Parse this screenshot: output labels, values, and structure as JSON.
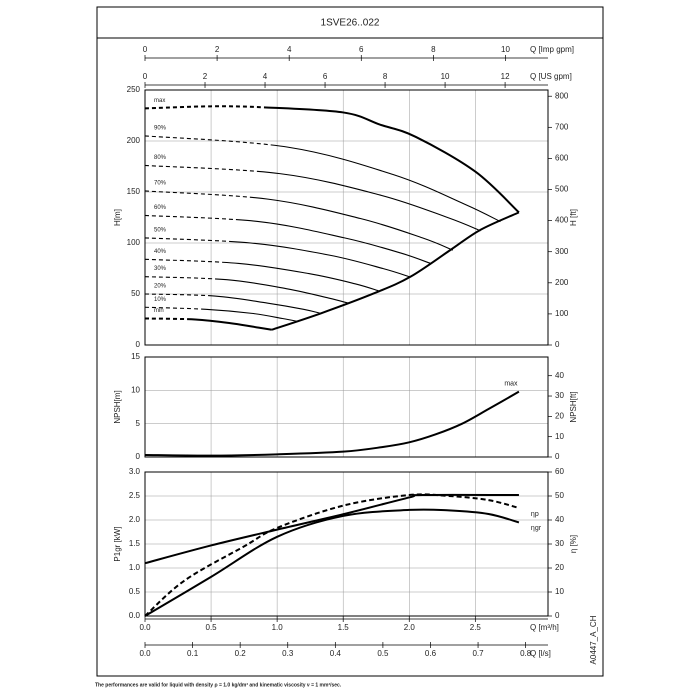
{
  "title": "1SVE26..022",
  "note": "The performances are valid for liquid with density ρ = 1.0 kg/dm³ and kinematic viscosity ν = 1 mm²/sec.",
  "code": "A0447_A_CH",
  "x_axes": [
    {
      "label": "Q [Imp gpm]",
      "position": "top",
      "xlim": [
        0,
        11.18
      ],
      "xticks": [
        0,
        2,
        4,
        6,
        8,
        10
      ]
    },
    {
      "label": "Q [US gpm]",
      "position": "top",
      "xlim": [
        0,
        13.43
      ],
      "xticks": [
        0,
        2,
        4,
        6,
        8,
        10,
        12
      ]
    },
    {
      "label": "Q [m³/h]",
      "position": "bottom",
      "xlim": [
        0,
        3.05
      ],
      "xticks": [
        {
          "value": 0,
          "label": "0.0"
        },
        {
          "value": 0.5,
          "label": "0.5"
        },
        {
          "value": 1,
          "label": "1.0"
        },
        {
          "value": 1.5,
          "label": "1.5"
        },
        {
          "value": 2,
          "label": "2.0"
        },
        {
          "value": 2.5,
          "label": "2.5"
        }
      ]
    },
    {
      "label": "Q [l/s]",
      "position": "bottom",
      "xlim": [
        0,
        0.847
      ],
      "xticks": [
        {
          "value": 0,
          "label": "0.0"
        },
        0.1,
        0.2,
        0.3,
        0.4,
        0.5,
        0.6,
        0.7,
        0.8
      ]
    }
  ],
  "chart_data": [
    {
      "type": "line",
      "ylabel": "H[m]",
      "y2label": "H [ft]",
      "xlim": [
        0,
        3.05
      ],
      "grid": true,
      "ylim": [
        0,
        250
      ],
      "yticks": [
        0,
        50,
        100,
        150,
        200,
        250
      ],
      "y2lim": [
        0,
        820
      ],
      "y2ticks": [
        0,
        100,
        200,
        300,
        400,
        500,
        600,
        700,
        800
      ],
      "series": [
        {
          "name": "max",
          "width": 2,
          "dash_end": 0.9,
          "x": [
            0,
            0.5,
            0.9,
            1.5,
            1.78,
            2.05,
            2.5,
            2.83
          ],
          "values": [
            232,
            234,
            233,
            228,
            216,
            204,
            170,
            130
          ]
        },
        {
          "name": "90%",
          "dash_end": 0.9,
          "x": [
            0,
            1.08,
            1.88,
            2.42,
            2.69
          ],
          "values": [
            205,
            194,
            167,
            138,
            121
          ]
        },
        {
          "name": "80%",
          "dash_end": 0.8,
          "x": [
            0,
            1.02,
            1.78,
            2.29,
            2.54
          ],
          "values": [
            176,
            168,
            147,
            125,
            112
          ]
        },
        {
          "name": "70%",
          "dash_end": 0.75,
          "x": [
            0,
            0.93,
            1.63,
            2.1,
            2.33
          ],
          "values": [
            151,
            143,
            124,
            105,
            93
          ]
        },
        {
          "name": "60%",
          "dash_end": 0.65,
          "x": [
            0,
            0.86,
            1.51,
            1.94,
            2.16
          ],
          "values": [
            127,
            121,
            105,
            90,
            80
          ]
        },
        {
          "name": "50%",
          "dash_end": 0.6,
          "x": [
            0,
            0.8,
            1.4,
            1.8,
            2.0
          ],
          "values": [
            105,
            100,
            88,
            75,
            67
          ]
        },
        {
          "name": "40%",
          "dash_end": 0.55,
          "x": [
            0,
            0.71,
            1.24,
            1.59,
            1.77
          ],
          "values": [
            84,
            80,
            70,
            60,
            53
          ]
        },
        {
          "name": "30%",
          "dash_end": 0.5,
          "x": [
            0,
            0.62,
            1.08,
            1.39,
            1.54
          ],
          "values": [
            67,
            64,
            55,
            46,
            41
          ]
        },
        {
          "name": "20%",
          "dash_end": 0.45,
          "x": [
            0,
            0.53,
            0.93,
            1.2,
            1.33
          ],
          "values": [
            50,
            48,
            41,
            35,
            31
          ]
        },
        {
          "name": "10%",
          "dash_end": 0.4,
          "x": [
            0,
            0.46,
            0.81,
            1.04,
            1.16
          ],
          "values": [
            37,
            35,
            31,
            26,
            23
          ]
        },
        {
          "name": "min",
          "width": 2,
          "dash_end": 0.3,
          "x": [
            0,
            0.38,
            0.67,
            0.86,
            0.96
          ],
          "values": [
            26,
            25,
            21,
            17,
            15
          ]
        },
        {
          "width": 2,
          "x": [
            0.96,
            1.33,
            1.74,
            2.01,
            2.31,
            2.54,
            2.83
          ],
          "values": [
            15,
            31,
            51,
            67,
            93,
            113,
            130
          ]
        }
      ]
    },
    {
      "type": "line",
      "ylabel": "NPSH[m]",
      "y2label": "NPSH[ft]",
      "xlim": [
        0,
        3.05
      ],
      "grid": true,
      "ylim": [
        0,
        15
      ],
      "yticks": [
        0,
        5,
        10,
        15
      ],
      "y2lim": [
        0,
        49.2
      ],
      "y2ticks": [
        0,
        10,
        20,
        30,
        40
      ],
      "series": [
        {
          "name": "max",
          "width": 2,
          "x": [
            0,
            0.5,
            1,
            1.5,
            1.8,
            2.0,
            2.2,
            2.4,
            2.6,
            2.83
          ],
          "values": [
            0.3,
            0.2,
            0.4,
            0.8,
            1.5,
            2.2,
            3.4,
            5.0,
            7.2,
            9.8
          ]
        }
      ]
    },
    {
      "type": "line",
      "ylabel": "P1gr [kW]",
      "y2label": "η [%]",
      "xlim": [
        0,
        3.05
      ],
      "grid": true,
      "ylim": [
        0,
        3
      ],
      "yticks": [
        {
          "value": 0,
          "label": "0.0"
        },
        {
          "value": 0.5,
          "label": "0.5"
        },
        {
          "value": 1,
          "label": "1.0"
        },
        {
          "value": 1.5,
          "label": "1.5"
        },
        {
          "value": 2,
          "label": "2.0"
        },
        {
          "value": 2.5,
          "label": "2.5"
        },
        {
          "value": 3,
          "label": "3.0"
        }
      ],
      "y2lim": [
        0,
        60
      ],
      "y2ticks": [
        0,
        10,
        20,
        30,
        40,
        50,
        60
      ],
      "series": [
        {
          "width": 2,
          "x": [
            0,
            0.5,
            1.0,
            1.5,
            2.0,
            2.1,
            2.83
          ],
          "values": [
            1.1,
            1.47,
            1.8,
            2.12,
            2.47,
            2.52,
            2.52
          ]
        },
        {
          "name": "ηp",
          "axis": "y2",
          "width": 2,
          "style": "dashed",
          "x": [
            0,
            0.3,
            0.75,
            1.0,
            1.5,
            2.0,
            2.3,
            2.6,
            2.83
          ],
          "values": [
            0,
            14.8,
            29,
            36.7,
            46,
            50.4,
            50,
            48.3,
            45
          ]
        },
        {
          "name": "ηgr",
          "axis": "y2",
          "width": 2,
          "x": [
            0,
            0.5,
            1.0,
            1.5,
            2.0,
            2.3,
            2.6,
            2.83
          ],
          "values": [
            0,
            16.3,
            33,
            41.7,
            44.2,
            44,
            42.5,
            39
          ]
        }
      ]
    }
  ]
}
